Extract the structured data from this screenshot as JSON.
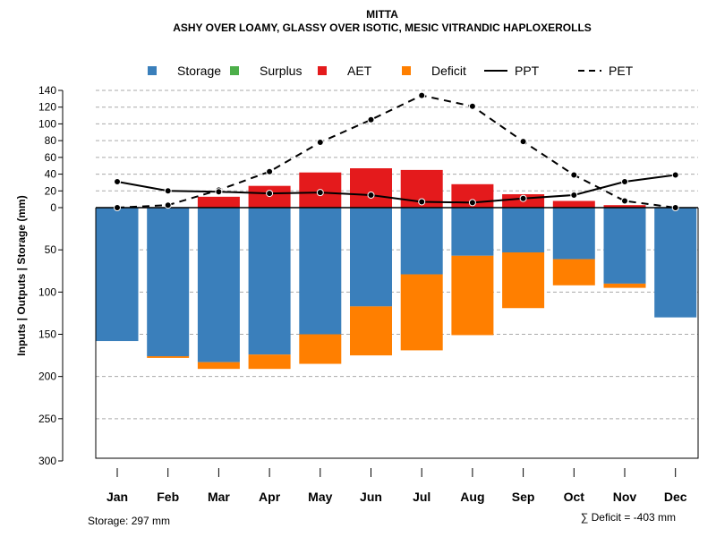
{
  "chart_data": {
    "type": "bar",
    "title": "MITTA",
    "subtitle": "ASHY OVER LOAMY, GLASSY OVER ISOTIC, MESIC VITRANDIC HAPLOXEROLLS",
    "ylabel": "Inputs | Outputs | Storage     (mm)",
    "categories": [
      "Jan",
      "Feb",
      "Mar",
      "Apr",
      "May",
      "Jun",
      "Jul",
      "Aug",
      "Sep",
      "Oct",
      "Nov",
      "Dec"
    ],
    "upper_ticks": [
      "140",
      "120",
      "100",
      "80",
      "60",
      "40",
      "20",
      "0"
    ],
    "lower_ticks": [
      "50",
      "100",
      "150",
      "200",
      "250",
      "300"
    ],
    "upper_ylim": [
      0,
      140
    ],
    "lower_ylim": [
      0,
      300
    ],
    "legend": {
      "position": "top",
      "items": [
        {
          "label": "Storage",
          "kind": "box",
          "color": "#3A7FBB"
        },
        {
          "label": "Surplus",
          "kind": "box",
          "color": "#4DAF4A"
        },
        {
          "label": "AET",
          "kind": "box",
          "color": "#E41A1C"
        },
        {
          "label": "Deficit",
          "kind": "box",
          "color": "#FF7F00"
        },
        {
          "label": "PPT",
          "kind": "solid"
        },
        {
          "label": "PET",
          "kind": "dashed"
        }
      ]
    },
    "series": [
      {
        "name": "AET",
        "values": [
          0,
          0,
          13,
          26,
          42,
          47,
          45,
          28,
          16,
          8,
          3,
          0
        ]
      },
      {
        "name": "Surplus",
        "values": [
          0,
          0,
          0,
          0,
          0,
          0,
          0,
          0,
          0,
          0,
          0,
          0
        ]
      },
      {
        "name": "Storage",
        "values": [
          158,
          176,
          183,
          174,
          150,
          117,
          79,
          57,
          53,
          61,
          90,
          130
        ]
      },
      {
        "name": "Deficit",
        "values": [
          0,
          2,
          8,
          17,
          35,
          58,
          90,
          94,
          66,
          31,
          5,
          0
        ]
      },
      {
        "name": "PPT",
        "values": [
          31,
          20,
          19,
          17,
          18,
          15,
          7,
          6,
          11,
          15,
          31,
          39
        ]
      },
      {
        "name": "PET",
        "values": [
          0,
          3,
          21,
          43,
          78,
          105,
          134,
          121,
          79,
          39,
          8,
          0
        ]
      }
    ],
    "annotations": {
      "storage_note": "Storage: 297 mm",
      "deficit_note": "∑ Deficit = -403 mm"
    }
  }
}
